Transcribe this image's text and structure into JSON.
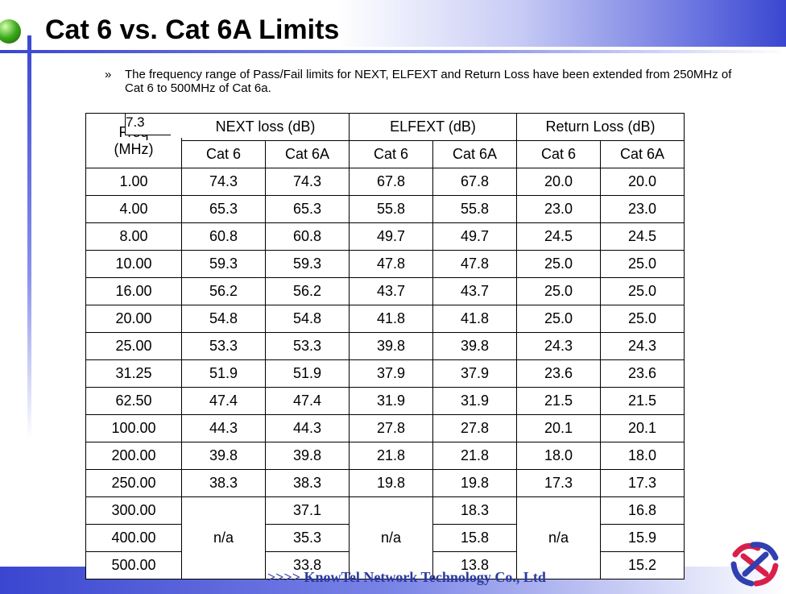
{
  "title": "Cat 6 vs. Cat 6A Limits",
  "bullet": {
    "marker": "»",
    "text": "The frequency range of Pass/Fail limits for NEXT, ELFEXT and Return Loss have been extended from 250MHz of Cat 6 to 500MHz of Cat 6a."
  },
  "table": {
    "header": {
      "freq": [
        "Freq",
        "(MHz)"
      ],
      "overlay": "7.3",
      "groups": [
        "NEXT loss (dB)",
        "ELFEXT (dB)",
        "Return Loss (dB)"
      ],
      "sub": [
        "Cat 6",
        "Cat 6A",
        "Cat 6",
        "Cat 6A",
        "Cat 6",
        "Cat 6A"
      ]
    },
    "rows": [
      [
        "1.00",
        "74.3",
        "74.3",
        "67.8",
        "67.8",
        "20.0",
        "20.0"
      ],
      [
        "4.00",
        "65.3",
        "65.3",
        "55.8",
        "55.8",
        "23.0",
        "23.0"
      ],
      [
        "8.00",
        "60.8",
        "60.8",
        "49.7",
        "49.7",
        "24.5",
        "24.5"
      ],
      [
        "10.00",
        "59.3",
        "59.3",
        "47.8",
        "47.8",
        "25.0",
        "25.0"
      ],
      [
        "16.00",
        "56.2",
        "56.2",
        "43.7",
        "43.7",
        "25.0",
        "25.0"
      ],
      [
        "20.00",
        "54.8",
        "54.8",
        "41.8",
        "41.8",
        "25.0",
        "25.0"
      ],
      [
        "25.00",
        "53.3",
        "53.3",
        "39.8",
        "39.8",
        "24.3",
        "24.3"
      ],
      [
        "31.25",
        "51.9",
        "51.9",
        "37.9",
        "37.9",
        "23.6",
        "23.6"
      ],
      [
        "62.50",
        "47.4",
        "47.4",
        "31.9",
        "31.9",
        "21.5",
        "21.5"
      ],
      [
        "100.00",
        "44.3",
        "44.3",
        "27.8",
        "27.8",
        "20.1",
        "20.1"
      ],
      [
        "200.00",
        "39.8",
        "39.8",
        "21.8",
        "21.8",
        "18.0",
        "18.0"
      ],
      [
        "250.00",
        "38.3",
        "38.3",
        "19.8",
        "19.8",
        "17.3",
        "17.3"
      ]
    ],
    "extended_rows": [
      [
        "300.00",
        "37.1",
        "18.3",
        "16.8"
      ],
      [
        "400.00",
        "35.3",
        "15.8",
        "15.9"
      ],
      [
        "500.00",
        "33.8",
        "13.8",
        "15.2"
      ]
    ],
    "merged": [
      "n/a",
      "n/a",
      "n/a"
    ]
  },
  "footer": ">>>> KnowTel Network Technology Co., Ltd"
}
